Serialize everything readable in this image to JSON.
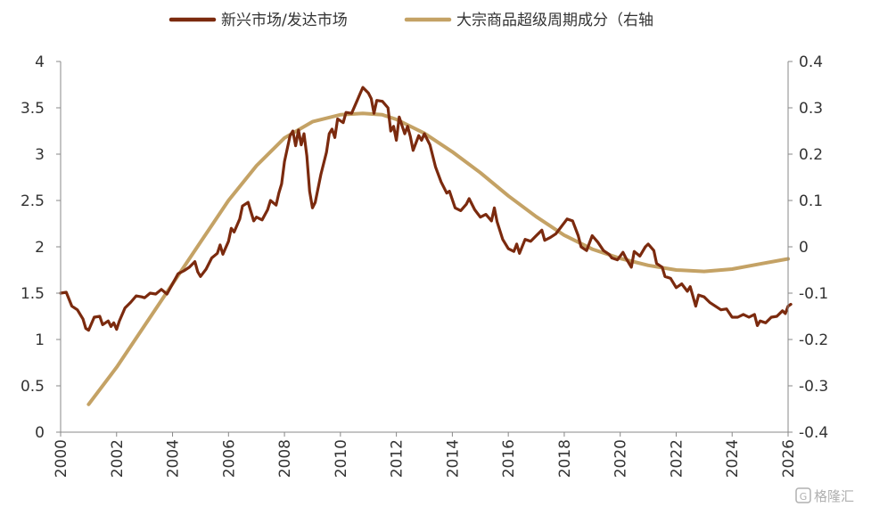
{
  "chart_data": {
    "type": "line",
    "legend": {
      "placement": "top-center"
    },
    "grid": false,
    "x_axis": {
      "range": [
        2000,
        2026
      ],
      "ticks": [
        "2000",
        "2002",
        "2004",
        "2006",
        "2008",
        "2010",
        "2012",
        "2014",
        "2016",
        "2018",
        "2020",
        "2022",
        "2024",
        "2026"
      ]
    },
    "y_left": {
      "range": [
        0,
        4
      ],
      "ticks": [
        "0",
        "0.5",
        "1",
        "1.5",
        "2",
        "2.5",
        "3",
        "3.5",
        "4"
      ]
    },
    "y_right": {
      "range": [
        -0.4,
        0.4
      ],
      "ticks": [
        "-0.4",
        "-0.3",
        "-0.2",
        "-0.1",
        "0",
        "0.1",
        "0.2",
        "0.3",
        "0.4"
      ]
    },
    "series": [
      {
        "name": "新兴市场/发达市场",
        "axis": "left",
        "color": "#7b2a0e",
        "points": [
          [
            2000.0,
            1.5
          ],
          [
            2000.2,
            1.51
          ],
          [
            2000.4,
            1.36
          ],
          [
            2000.6,
            1.32
          ],
          [
            2000.8,
            1.22
          ],
          [
            2000.9,
            1.12
          ],
          [
            2001.0,
            1.1
          ],
          [
            2001.2,
            1.24
          ],
          [
            2001.4,
            1.25
          ],
          [
            2001.5,
            1.16
          ],
          [
            2001.7,
            1.2
          ],
          [
            2001.8,
            1.14
          ],
          [
            2001.9,
            1.18
          ],
          [
            2002.0,
            1.11
          ],
          [
            2002.1,
            1.2
          ],
          [
            2002.3,
            1.34
          ],
          [
            2002.5,
            1.4
          ],
          [
            2002.7,
            1.47
          ],
          [
            2002.9,
            1.46
          ],
          [
            2003.0,
            1.45
          ],
          [
            2003.2,
            1.5
          ],
          [
            2003.4,
            1.49
          ],
          [
            2003.6,
            1.54
          ],
          [
            2003.8,
            1.49
          ],
          [
            2004.0,
            1.6
          ],
          [
            2004.2,
            1.71
          ],
          [
            2004.4,
            1.74
          ],
          [
            2004.6,
            1.78
          ],
          [
            2004.8,
            1.84
          ],
          [
            2004.9,
            1.73
          ],
          [
            2005.0,
            1.68
          ],
          [
            2005.2,
            1.76
          ],
          [
            2005.4,
            1.88
          ],
          [
            2005.6,
            1.93
          ],
          [
            2005.7,
            2.02
          ],
          [
            2005.8,
            1.92
          ],
          [
            2006.0,
            2.06
          ],
          [
            2006.1,
            2.2
          ],
          [
            2006.2,
            2.16
          ],
          [
            2006.4,
            2.3
          ],
          [
            2006.5,
            2.44
          ],
          [
            2006.7,
            2.48
          ],
          [
            2006.8,
            2.38
          ],
          [
            2006.9,
            2.28
          ],
          [
            2007.0,
            2.32
          ],
          [
            2007.2,
            2.29
          ],
          [
            2007.4,
            2.4
          ],
          [
            2007.5,
            2.5
          ],
          [
            2007.7,
            2.45
          ],
          [
            2007.8,
            2.58
          ],
          [
            2007.9,
            2.68
          ],
          [
            2008.0,
            2.92
          ],
          [
            2008.2,
            3.2
          ],
          [
            2008.3,
            3.25
          ],
          [
            2008.4,
            3.09
          ],
          [
            2008.5,
            3.26
          ],
          [
            2008.6,
            3.1
          ],
          [
            2008.7,
            3.22
          ],
          [
            2008.8,
            2.98
          ],
          [
            2008.9,
            2.6
          ],
          [
            2009.0,
            2.42
          ],
          [
            2009.1,
            2.48
          ],
          [
            2009.3,
            2.78
          ],
          [
            2009.5,
            3.02
          ],
          [
            2009.6,
            3.22
          ],
          [
            2009.7,
            3.27
          ],
          [
            2009.8,
            3.18
          ],
          [
            2009.9,
            3.38
          ],
          [
            2010.1,
            3.34
          ],
          [
            2010.2,
            3.45
          ],
          [
            2010.4,
            3.44
          ],
          [
            2010.6,
            3.58
          ],
          [
            2010.7,
            3.65
          ],
          [
            2010.8,
            3.72
          ],
          [
            2011.0,
            3.66
          ],
          [
            2011.1,
            3.6
          ],
          [
            2011.2,
            3.44
          ],
          [
            2011.3,
            3.58
          ],
          [
            2011.5,
            3.57
          ],
          [
            2011.7,
            3.5
          ],
          [
            2011.8,
            3.25
          ],
          [
            2011.9,
            3.3
          ],
          [
            2012.0,
            3.15
          ],
          [
            2012.1,
            3.4
          ],
          [
            2012.3,
            3.22
          ],
          [
            2012.4,
            3.3
          ],
          [
            2012.5,
            3.19
          ],
          [
            2012.6,
            3.04
          ],
          [
            2012.8,
            3.2
          ],
          [
            2012.9,
            3.15
          ],
          [
            2013.0,
            3.22
          ],
          [
            2013.2,
            3.1
          ],
          [
            2013.4,
            2.86
          ],
          [
            2013.6,
            2.7
          ],
          [
            2013.8,
            2.58
          ],
          [
            2013.9,
            2.6
          ],
          [
            2014.1,
            2.42
          ],
          [
            2014.3,
            2.39
          ],
          [
            2014.5,
            2.46
          ],
          [
            2014.6,
            2.52
          ],
          [
            2014.8,
            2.4
          ],
          [
            2015.0,
            2.32
          ],
          [
            2015.2,
            2.35
          ],
          [
            2015.4,
            2.28
          ],
          [
            2015.5,
            2.42
          ],
          [
            2015.6,
            2.27
          ],
          [
            2015.8,
            2.08
          ],
          [
            2016.0,
            1.98
          ],
          [
            2016.2,
            1.95
          ],
          [
            2016.3,
            2.03
          ],
          [
            2016.4,
            1.93
          ],
          [
            2016.6,
            2.08
          ],
          [
            2016.8,
            2.06
          ],
          [
            2017.0,
            2.12
          ],
          [
            2017.2,
            2.18
          ],
          [
            2017.3,
            2.07
          ],
          [
            2017.5,
            2.1
          ],
          [
            2017.7,
            2.14
          ],
          [
            2017.9,
            2.22
          ],
          [
            2018.1,
            2.3
          ],
          [
            2018.3,
            2.28
          ],
          [
            2018.5,
            2.12
          ],
          [
            2018.6,
            2.0
          ],
          [
            2018.8,
            1.96
          ],
          [
            2019.0,
            2.12
          ],
          [
            2019.2,
            2.05
          ],
          [
            2019.4,
            1.96
          ],
          [
            2019.6,
            1.92
          ],
          [
            2019.7,
            1.88
          ],
          [
            2019.9,
            1.86
          ],
          [
            2020.1,
            1.94
          ],
          [
            2020.2,
            1.88
          ],
          [
            2020.4,
            1.78
          ],
          [
            2020.5,
            1.95
          ],
          [
            2020.7,
            1.9
          ],
          [
            2020.9,
            2.0
          ],
          [
            2021.0,
            2.03
          ],
          [
            2021.2,
            1.96
          ],
          [
            2021.3,
            1.82
          ],
          [
            2021.5,
            1.78
          ],
          [
            2021.6,
            1.68
          ],
          [
            2021.8,
            1.66
          ],
          [
            2022.0,
            1.56
          ],
          [
            2022.2,
            1.6
          ],
          [
            2022.4,
            1.52
          ],
          [
            2022.5,
            1.57
          ],
          [
            2022.7,
            1.36
          ],
          [
            2022.8,
            1.48
          ],
          [
            2023.0,
            1.46
          ],
          [
            2023.2,
            1.4
          ],
          [
            2023.4,
            1.36
          ],
          [
            2023.6,
            1.32
          ],
          [
            2023.8,
            1.33
          ],
          [
            2024.0,
            1.24
          ],
          [
            2024.2,
            1.24
          ],
          [
            2024.4,
            1.27
          ],
          [
            2024.6,
            1.24
          ],
          [
            2024.8,
            1.27
          ],
          [
            2024.9,
            1.15
          ],
          [
            2025.0,
            1.2
          ],
          [
            2025.2,
            1.18
          ],
          [
            2025.4,
            1.24
          ],
          [
            2025.6,
            1.25
          ],
          [
            2025.8,
            1.31
          ],
          [
            2025.9,
            1.28
          ],
          [
            2026.0,
            1.36
          ],
          [
            2026.1,
            1.38
          ]
        ]
      },
      {
        "name": "大宗商品超级周期成分（右轴",
        "axis": "right",
        "color": "#c4a265",
        "points": [
          [
            2001.0,
            -0.34
          ],
          [
            2002.0,
            -0.26
          ],
          [
            2003.0,
            -0.17
          ],
          [
            2004.0,
            -0.08
          ],
          [
            2005.0,
            0.01
          ],
          [
            2006.0,
            0.1
          ],
          [
            2007.0,
            0.175
          ],
          [
            2008.0,
            0.235
          ],
          [
            2009.0,
            0.27
          ],
          [
            2010.0,
            0.285
          ],
          [
            2010.8,
            0.288
          ],
          [
            2011.5,
            0.285
          ],
          [
            2012.0,
            0.275
          ],
          [
            2013.0,
            0.245
          ],
          [
            2014.0,
            0.205
          ],
          [
            2015.0,
            0.16
          ],
          [
            2016.0,
            0.11
          ],
          [
            2017.0,
            0.065
          ],
          [
            2018.0,
            0.025
          ],
          [
            2019.0,
            -0.005
          ],
          [
            2020.0,
            -0.025
          ],
          [
            2021.0,
            -0.04
          ],
          [
            2022.0,
            -0.05
          ],
          [
            2023.0,
            -0.053
          ],
          [
            2024.0,
            -0.048
          ],
          [
            2025.0,
            -0.037
          ],
          [
            2026.0,
            -0.026
          ]
        ]
      }
    ]
  },
  "watermark": "格隆汇"
}
